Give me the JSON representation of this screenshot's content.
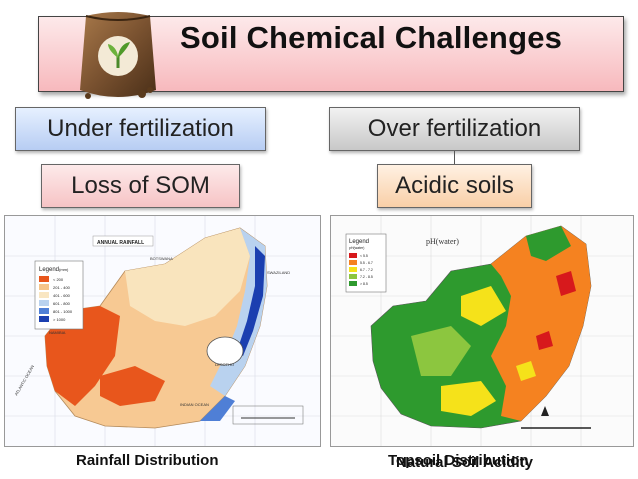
{
  "title": "Soil Chemical Challenges",
  "icon": "soil-bag-icon",
  "boxes": {
    "under_fertilization": "Under fertilization",
    "over_fertilization": "Over fertilization",
    "loss_of_som": "Loss of SOM",
    "acidic_soils": "Acidic soils"
  },
  "map_left": {
    "inset_title": "ANNUAL RAINFALL",
    "legend_title": "Legend",
    "legend_unit": "(mm)",
    "legend_items": [
      "< 200",
      "201 - 400",
      "401 - 600",
      "601 - 800",
      "801 - 1000",
      "> 1000"
    ],
    "legend_colors": [
      "#e8561c",
      "#f6c58a",
      "#f9e6c2",
      "#b9d2ef",
      "#4f7fd6",
      "#1b3fb0"
    ],
    "labels": [
      "NAMIBIA",
      "BOTSWANA",
      "SWAZILAND",
      "LESOTHO",
      "INDIAN OCEAN",
      "ATLANTIC OCEAN"
    ]
  },
  "map_right": {
    "inset_title": "pH(water)",
    "legend_title": "Legend",
    "legend_unit": "pH(water)",
    "legend_items": [
      "< 5.5",
      "5.5 - 6.7",
      "6.7 - 7.2",
      "7.2 - 8.5",
      "> 8.5"
    ],
    "legend_colors": [
      "#d7191c",
      "#f58220",
      "#f5e21a",
      "#8cc63f",
      "#2e9a2e"
    ]
  },
  "captions": {
    "left": "Rainfall Distribution",
    "right_a": "Topsoil Distribution",
    "right_b": "Natural Soil Acidity"
  }
}
